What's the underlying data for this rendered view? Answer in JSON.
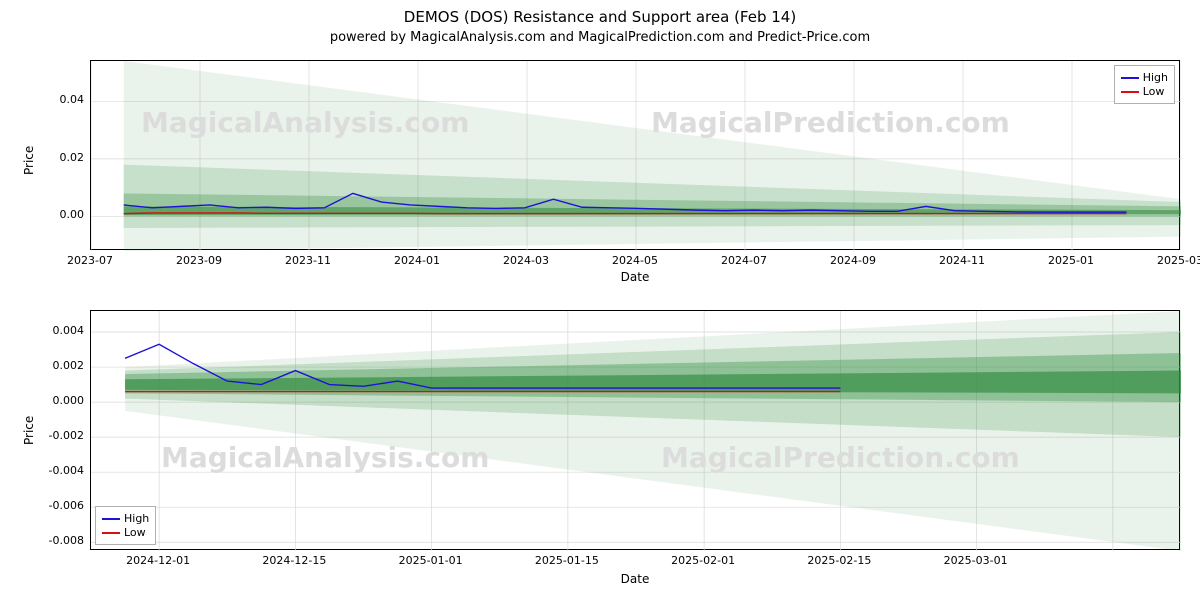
{
  "figure": {
    "title": "DEMOS (DOS) Resistance and Support area (Feb 14)",
    "subtitle": "powered by MagicalAnalysis.com and MagicalPrediction.com and Predict-Price.com",
    "title_fontsize": 15,
    "subtitle_fontsize": 13,
    "background_color": "#ffffff",
    "watermarks": [
      "MagicalAnalysis.com",
      "MagicalPrediction.com"
    ],
    "watermark_color": "#dcdcdc",
    "watermark_fontsize": 28,
    "grid_color": "#d9d9d9",
    "axis_color": "#000000"
  },
  "legend": {
    "items": [
      {
        "label": "High",
        "color": "#1f12d6"
      },
      {
        "label": "Low",
        "color": "#d90e0e"
      }
    ]
  },
  "top_chart": {
    "type": "line",
    "ylabel": "Price",
    "xlabel": "Date",
    "label_fontsize": 12,
    "tick_fontsize": 11,
    "ylim": [
      -0.012,
      0.054
    ],
    "yticks": [
      0.0,
      0.02,
      0.04
    ],
    "xlim": [
      0,
      20
    ],
    "xticks_pos": [
      0,
      2,
      4,
      6,
      8,
      10,
      12,
      14,
      16,
      18,
      20
    ],
    "xticks_labels": [
      "2023-07",
      "2023-09",
      "2023-11",
      "2024-01",
      "2024-03",
      "2024-05",
      "2024-07",
      "2024-09",
      "2024-11",
      "2025-01",
      "2025-03"
    ],
    "legend_pos": "top-right",
    "fan_bands": [
      {
        "opacity": 0.1,
        "color": "#2e8b3d",
        "y0_start": -0.012,
        "y0_end": -0.007,
        "y1_start": 0.054,
        "y1_end": 0.006
      },
      {
        "opacity": 0.18,
        "color": "#2e8b3d",
        "y0_start": -0.004,
        "y0_end": -0.003,
        "y1_start": 0.018,
        "y1_end": 0.005
      },
      {
        "opacity": 0.3,
        "color": "#2e8b3d",
        "y0_start": 0.0,
        "y0_end": 0.0,
        "y1_start": 0.008,
        "y1_end": 0.0035
      },
      {
        "opacity": 0.55,
        "color": "#2e8b3d",
        "y0_start": 0.0005,
        "y0_end": 0.0008,
        "y1_start": 0.0035,
        "y1_end": 0.0022
      }
    ],
    "data_x_start": 0.6,
    "data_x_end": 19.0,
    "high": {
      "color": "#1f12d6",
      "values": [
        0.004,
        0.003,
        0.0035,
        0.004,
        0.003,
        0.0032,
        0.0028,
        0.003,
        0.008,
        0.005,
        0.004,
        0.0035,
        0.003,
        0.0028,
        0.003,
        0.006,
        0.0032,
        0.003,
        0.0028,
        0.0025,
        0.0022,
        0.002,
        0.0022,
        0.002,
        0.0022,
        0.002,
        0.0018,
        0.0018,
        0.0035,
        0.002,
        0.0018,
        0.0016,
        0.0015,
        0.0015,
        0.0015,
        0.0015
      ]
    },
    "low": {
      "color": "#d90e0e",
      "values": [
        0.001,
        0.0012,
        0.0012,
        0.0012,
        0.0012,
        0.0011,
        0.0011,
        0.0011,
        0.0011,
        0.0011,
        0.0011,
        0.001,
        0.001,
        0.001,
        0.001,
        0.001,
        0.001,
        0.001,
        0.001,
        0.001,
        0.001,
        0.001,
        0.001,
        0.001,
        0.001,
        0.001,
        0.001,
        0.001,
        0.001,
        0.001,
        0.001,
        0.001,
        0.001,
        0.001,
        0.001,
        0.001
      ]
    }
  },
  "bottom_chart": {
    "type": "line",
    "ylabel": "Price",
    "xlabel": "Date",
    "label_fontsize": 12,
    "tick_fontsize": 11,
    "ylim": [
      -0.0085,
      0.0052
    ],
    "yticks": [
      -0.008,
      -0.006,
      -0.004,
      -0.002,
      0.0,
      0.002,
      0.004
    ],
    "xlim": [
      0,
      16
    ],
    "xticks_pos": [
      1,
      3,
      5,
      7,
      9,
      11,
      13,
      15
    ],
    "xticks_labels": [
      "2024-12-01",
      "2024-12-15",
      "2025-01-01",
      "2025-01-15",
      "2025-02-01",
      "2025-02-15",
      "2025-03-01",
      ""
    ],
    "legend_pos": "bottom-left",
    "fan_bands": [
      {
        "opacity": 0.1,
        "color": "#2e8b3d",
        "y0_start": -0.0005,
        "y0_end": -0.0085,
        "y1_start": 0.002,
        "y1_end": 0.0052
      },
      {
        "opacity": 0.2,
        "color": "#2e8b3d",
        "y0_start": 0.0002,
        "y0_end": -0.002,
        "y1_start": 0.0018,
        "y1_end": 0.004
      },
      {
        "opacity": 0.35,
        "color": "#2e8b3d",
        "y0_start": 0.0005,
        "y0_end": 0.0,
        "y1_start": 0.0016,
        "y1_end": 0.0028
      },
      {
        "opacity": 0.65,
        "color": "#2e8b3d",
        "y0_start": 0.0007,
        "y0_end": 0.0005,
        "y1_start": 0.0013,
        "y1_end": 0.0018
      }
    ],
    "data_x_start": 0.5,
    "data_x_end": 11.0,
    "high": {
      "color": "#1f12d6",
      "values": [
        0.0025,
        0.0033,
        0.0022,
        0.0012,
        0.001,
        0.0018,
        0.001,
        0.0009,
        0.0012,
        0.0008,
        0.0008,
        0.0008,
        0.0008,
        0.0008,
        0.0008,
        0.0008,
        0.0008,
        0.0008,
        0.0008,
        0.0008,
        0.0008,
        0.0008
      ]
    },
    "low": {
      "color": "#d90e0e",
      "values": [
        0.0006,
        0.0006,
        0.0006,
        0.0006,
        0.0006,
        0.0006,
        0.0006,
        0.0006,
        0.0006,
        0.0006,
        0.0006,
        0.0006,
        0.0006,
        0.0006,
        0.0006,
        0.0006,
        0.0006,
        0.0006,
        0.0006,
        0.0006,
        0.0006,
        0.0006
      ]
    }
  }
}
